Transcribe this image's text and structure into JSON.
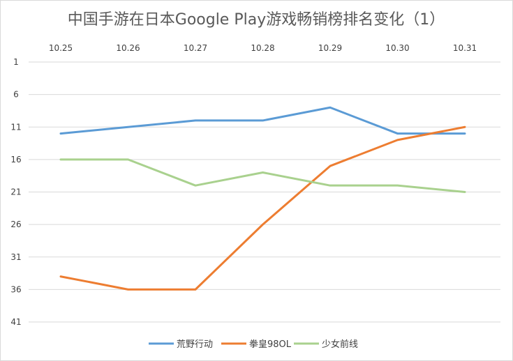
{
  "chart_data": {
    "type": "line",
    "title": "中国手游在日本Google Play游戏畅销榜排名变化（1）",
    "xlabel": "",
    "ylabel": "",
    "categories": [
      "10.25",
      "10.26",
      "10.27",
      "10.28",
      "10.29",
      "10.30",
      "10.31"
    ],
    "y_axis": {
      "min": 1,
      "max": 41,
      "reversed": true,
      "ticks": [
        1,
        6,
        11,
        16,
        21,
        26,
        31,
        36,
        41
      ],
      "grid": true
    },
    "x_axis_position": "top",
    "legend_position": "bottom",
    "series": [
      {
        "name": "荒野行动",
        "color": "#5b9bd5",
        "values": [
          12,
          11,
          10,
          10,
          8,
          12,
          12
        ]
      },
      {
        "name": "拳皇98OL",
        "color": "#ed7d31",
        "values": [
          34,
          36,
          36,
          26,
          17,
          13,
          11
        ]
      },
      {
        "name": "少女前线",
        "color": "#a9d18e",
        "values": [
          16,
          16,
          20,
          18,
          20,
          20,
          21
        ]
      }
    ]
  }
}
